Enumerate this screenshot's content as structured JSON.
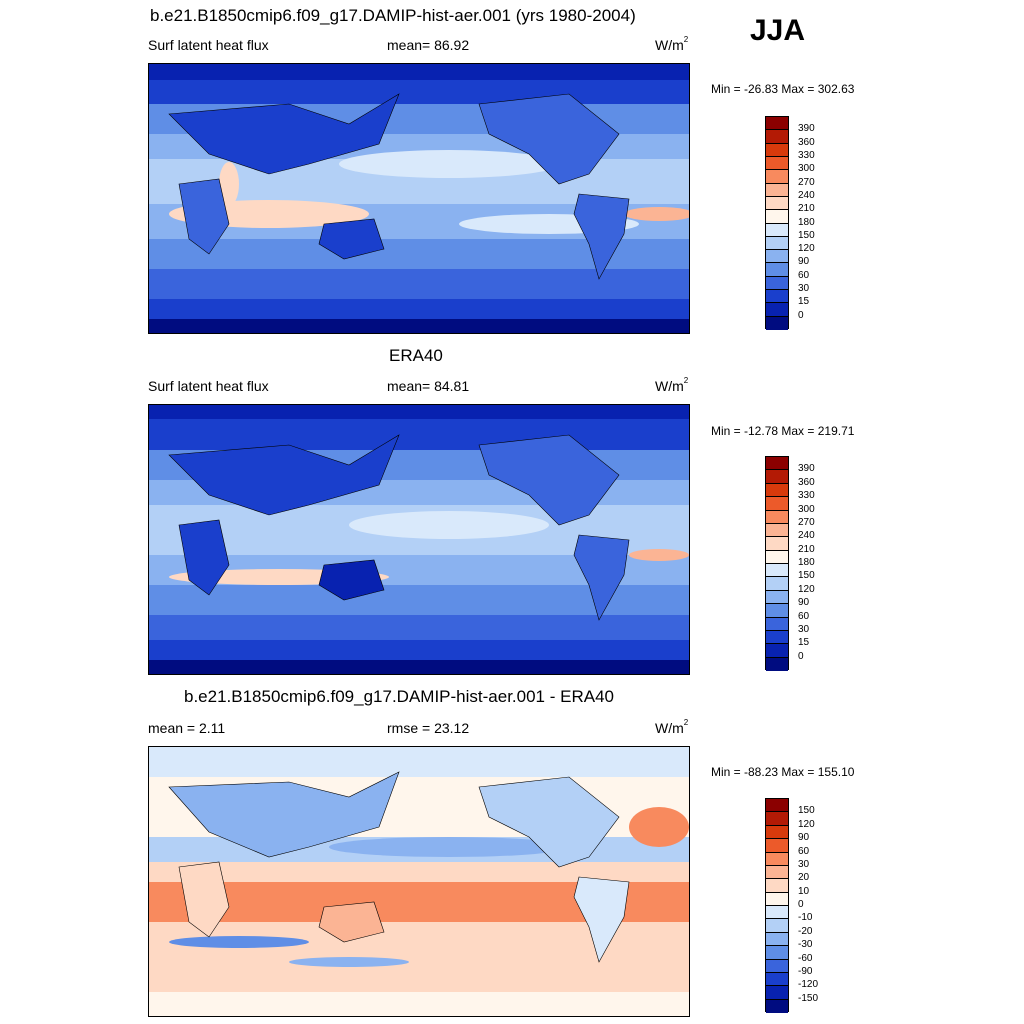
{
  "season": "JJA",
  "panels": [
    {
      "id": "model",
      "title": "b.e21.B1850cmip6.f09_g17.DAMIP-hist-aer.001 (yrs 1980-2004)",
      "left_text": "Surf latent heat flux",
      "center_text": "mean=  86.92",
      "unit_base": "W/m",
      "unit_exp": "2",
      "minmax": "Min = -26.83 Max = 302.63",
      "levels": [
        "390",
        "360",
        "330",
        "300",
        "270",
        "240",
        "210",
        "180",
        "150",
        "120",
        "90",
        "60",
        "30",
        "15",
        "0"
      ],
      "colors": [
        "#8b0000",
        "#b31a05",
        "#d73a0c",
        "#ec5a2a",
        "#f88a5e",
        "#fbb494",
        "#fed9c4",
        "#fff6ec",
        "#d9e9fb",
        "#b3d0f6",
        "#8ab2f0",
        "#5f8ee6",
        "#3a64dc",
        "#1a3fcc",
        "#0822b0",
        "#000c80"
      ]
    },
    {
      "id": "obs",
      "title": "ERA40",
      "left_text": "Surf latent heat flux",
      "center_text": "mean=  84.81",
      "unit_base": "W/m",
      "unit_exp": "2",
      "minmax": "Min = -12.78 Max = 219.71",
      "levels": [
        "390",
        "360",
        "330",
        "300",
        "270",
        "240",
        "210",
        "180",
        "150",
        "120",
        "90",
        "60",
        "30",
        "15",
        "0"
      ],
      "colors": [
        "#8b0000",
        "#b31a05",
        "#d73a0c",
        "#ec5a2a",
        "#f88a5e",
        "#fbb494",
        "#fed9c4",
        "#fff6ec",
        "#d9e9fb",
        "#b3d0f6",
        "#8ab2f0",
        "#5f8ee6",
        "#3a64dc",
        "#1a3fcc",
        "#0822b0",
        "#000c80"
      ]
    },
    {
      "id": "diff",
      "title": "b.e21.B1850cmip6.f09_g17.DAMIP-hist-aer.001 - ERA40",
      "left_text": "mean =   2.11",
      "center_text": "rmse =  23.12",
      "unit_base": "W/m",
      "unit_exp": "2",
      "minmax": "Min = -88.23 Max = 155.10",
      "levels": [
        "150",
        "120",
        "90",
        "60",
        "30",
        "20",
        "10",
        "0",
        "-10",
        "-20",
        "-30",
        "-60",
        "-90",
        "-120",
        "-150"
      ],
      "colors": [
        "#8b0000",
        "#b31a05",
        "#d73a0c",
        "#ec5a2a",
        "#f88a5e",
        "#fbb494",
        "#fed9c4",
        "#fff6ec",
        "#d9e9fb",
        "#b3d0f6",
        "#8ab2f0",
        "#5f8ee6",
        "#3a64dc",
        "#1a3fcc",
        "#0822b0",
        "#000c80"
      ]
    }
  ]
}
